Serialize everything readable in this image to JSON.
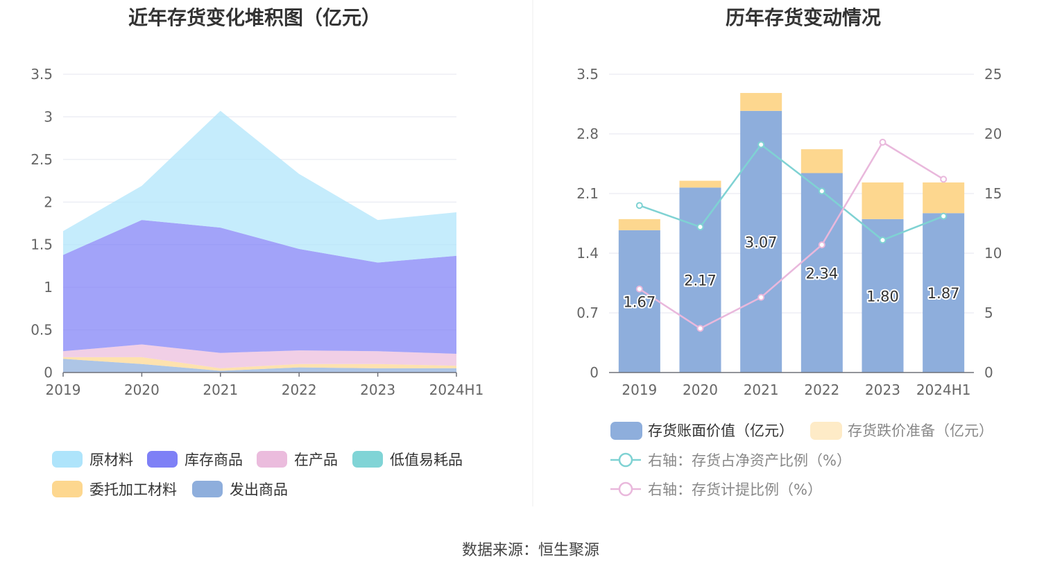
{
  "source": "数据来源：恒生聚源",
  "chart_data": [
    {
      "type": "area",
      "stacked": true,
      "title": "近年存货变化堆积图（亿元）",
      "categories": [
        "2019",
        "2020",
        "2021",
        "2022",
        "2023",
        "2024H1"
      ],
      "ylim": [
        0,
        3.5
      ],
      "yticks": [
        "0",
        "0.5",
        "1",
        "1.5",
        "2",
        "2.5",
        "3",
        "3.5"
      ],
      "grid": true,
      "legend_position": "bottom",
      "series": [
        {
          "name": "发出商品",
          "color": "#8eaedc",
          "values": [
            0.16,
            0.1,
            0.02,
            0.06,
            0.05,
            0.05
          ]
        },
        {
          "name": "委托加工材料",
          "color": "#fdd78f",
          "values": [
            0.02,
            0.08,
            0.03,
            0.04,
            0.05,
            0.03
          ]
        },
        {
          "name": "低值易耗品",
          "color": "#80d4d6",
          "values": [
            0.0,
            0.0,
            0.0,
            0.0,
            0.0,
            0.0
          ]
        },
        {
          "name": "在产品",
          "color": "#ebbcdd",
          "values": [
            0.07,
            0.15,
            0.18,
            0.16,
            0.15,
            0.14
          ]
        },
        {
          "name": "库存商品",
          "color": "#7e80f6",
          "values": [
            1.13,
            1.46,
            1.47,
            1.19,
            1.04,
            1.15
          ]
        },
        {
          "name": "原材料",
          "color": "#aee4fb",
          "values": [
            0.28,
            0.4,
            1.37,
            0.88,
            0.5,
            0.51
          ]
        }
      ],
      "legend_order": [
        "原材料",
        "库存商品",
        "在产品",
        "低值易耗品",
        "委托加工材料",
        "发出商品"
      ]
    },
    {
      "type": "bar",
      "stacked": true,
      "title": "历年存货变动情况",
      "categories": [
        "2019",
        "2020",
        "2021",
        "2022",
        "2023",
        "2024H1"
      ],
      "ylim": [
        0,
        3.5
      ],
      "yticks": [
        "0",
        "0.7",
        "1.4",
        "2.1",
        "2.8",
        "3.5"
      ],
      "y2lim": [
        0,
        25
      ],
      "y2ticks": [
        "0",
        "5",
        "10",
        "15",
        "20",
        "25"
      ],
      "grid": true,
      "legend_position": "bottom",
      "bar_series": [
        {
          "name": "存货账面价值（亿元）",
          "color": "#8eaedc",
          "values": [
            1.67,
            2.17,
            3.07,
            2.34,
            1.8,
            1.87
          ],
          "labels": [
            "1.67",
            "2.17",
            "3.07",
            "2.34",
            "1.80",
            "1.87"
          ]
        },
        {
          "name": "存货跌价准备（亿元）",
          "color": "#fdd78f",
          "values": [
            0.13,
            0.08,
            0.21,
            0.28,
            0.43,
            0.36
          ]
        }
      ],
      "line_series": [
        {
          "name": "右轴：存货占净资产比例（%）",
          "color": "#7fd2d3",
          "values": [
            14.0,
            12.2,
            19.1,
            15.2,
            11.1,
            13.1
          ]
        },
        {
          "name": "右轴：存货计提比例（%）",
          "color": "#e9b8dc",
          "values": [
            7.0,
            3.7,
            6.3,
            10.7,
            19.3,
            16.2
          ]
        }
      ]
    }
  ]
}
